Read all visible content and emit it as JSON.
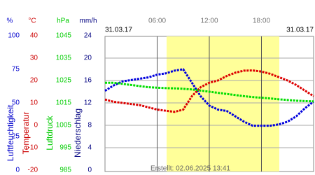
{
  "chart_data": {
    "type": "line",
    "date_left": "31.03.17",
    "date_right": "31.03.17",
    "footer": "Erstellt: 02.06.2025 13:41",
    "xlim": [
      0,
      24
    ],
    "xticks": [
      {
        "value": 6,
        "label": "06:00"
      },
      {
        "value": 12,
        "label": "12:00"
      },
      {
        "value": 18,
        "label": "18:00"
      }
    ],
    "grid": true,
    "axes": [
      {
        "unit": "%",
        "label": "Luftfeuchtigkeit",
        "color": "#0000cc",
        "lim": [
          0,
          100
        ],
        "ticks": [
          100,
          75,
          50,
          25,
          0
        ]
      },
      {
        "unit": "°C",
        "label": "Temperatur",
        "color": "#cc0000",
        "lim": [
          -20,
          40
        ],
        "ticks": [
          40,
          30,
          20,
          10,
          0,
          -10,
          -20
        ]
      },
      {
        "unit": "hPa",
        "label": "Luftdruck",
        "color": "#00cc00",
        "lim": [
          985,
          1045
        ],
        "ticks": [
          1045,
          1035,
          1025,
          1015,
          1005,
          995,
          985
        ]
      },
      {
        "unit": "mm/h",
        "label": "Niederschlag",
        "color": "#000080",
        "lim": [
          0,
          24
        ],
        "ticks": [
          24,
          20,
          16,
          12,
          8,
          4,
          0
        ]
      }
    ],
    "x": [
      0,
      1,
      2,
      3,
      4,
      5,
      6,
      7,
      8,
      9,
      10,
      11,
      12,
      13,
      14,
      15,
      16,
      17,
      18,
      19,
      20,
      21,
      22,
      23,
      24
    ],
    "series": [
      {
        "axis": 0,
        "color": "#0000dd",
        "values": [
          59,
          63,
          66,
          67,
          68,
          69,
          71,
          72,
          74,
          75,
          65,
          55,
          48,
          45,
          44,
          40,
          36,
          33,
          33,
          33,
          34,
          36,
          40,
          46,
          51
        ]
      },
      {
        "axis": 1,
        "color": "#dd0000",
        "values": [
          11.5,
          10.5,
          10,
          9.5,
          9,
          8,
          7,
          6.5,
          6,
          7,
          13,
          17,
          19,
          20,
          22,
          23.5,
          24.4,
          24.5,
          24,
          23,
          21.5,
          20,
          18,
          15.5,
          13
        ]
      },
      {
        "axis": 2,
        "color": "#00dd00",
        "values": [
          1024,
          1024,
          1023.5,
          1023,
          1022.5,
          1022,
          1021.8,
          1021.6,
          1021.5,
          1021.3,
          1021,
          1020.5,
          1020,
          1019.5,
          1019,
          1018.5,
          1018,
          1017.6,
          1017.3,
          1017,
          1016.6,
          1016.3,
          1016,
          1015.8,
          1015.7
        ]
      }
    ]
  }
}
